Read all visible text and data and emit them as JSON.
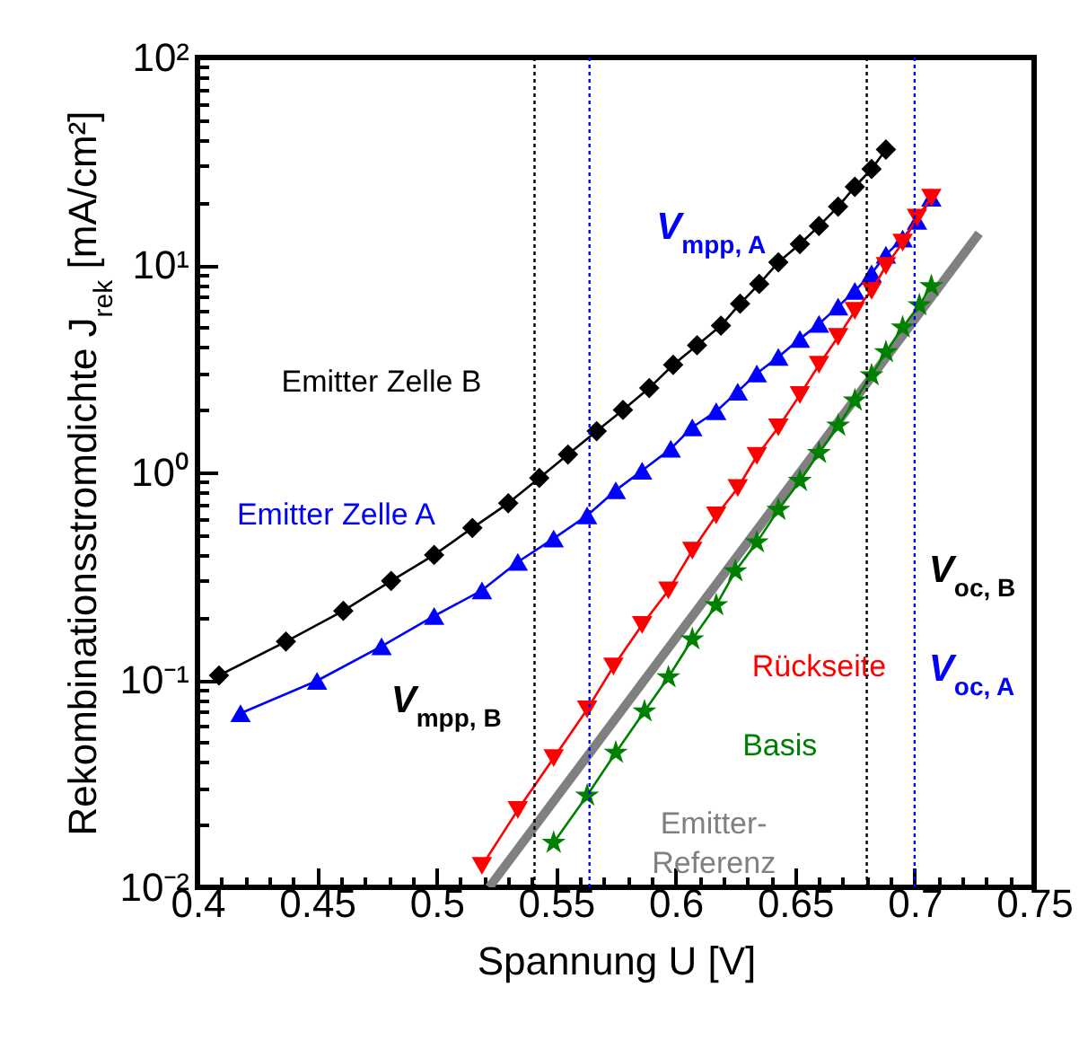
{
  "chart_data": {
    "type": "line",
    "xlabel": "Spannung U [V]",
    "ylabel": "Rekombinationsstromdichte J$_{rek}$ [mA/cm²]",
    "log": "y",
    "xlim": [
      0.4,
      0.75
    ],
    "xticks": [
      0.4,
      0.45,
      0.5,
      0.55,
      0.6,
      0.65,
      0.7,
      0.75
    ],
    "ylim": [
      0.01,
      100
    ],
    "yticks": [
      {
        "value": 0.01,
        "label": "10⁻²"
      },
      {
        "value": 0.1,
        "label": "10⁻¹"
      },
      {
        "value": 1,
        "label": "10⁰"
      },
      {
        "value": 10,
        "label": "10¹"
      },
      {
        "value": 100,
        "label": "10²"
      }
    ],
    "series": [
      {
        "name": "Emitter Zelle B",
        "color": "#000000",
        "marker": "diamond",
        "x": [
          0.409,
          0.437,
          0.461,
          0.481,
          0.499,
          0.515,
          0.53,
          0.543,
          0.555,
          0.567,
          0.578,
          0.589,
          0.599,
          0.609,
          0.619,
          0.627,
          0.635,
          0.643,
          0.652,
          0.66,
          0.668,
          0.675,
          0.682,
          0.688
        ],
        "values": [
          0.105,
          0.153,
          0.215,
          0.3,
          0.4,
          0.54,
          0.71,
          0.94,
          1.22,
          1.58,
          2.0,
          2.55,
          3.3,
          4.1,
          5.1,
          6.5,
          8.1,
          10.3,
          12.6,
          15.4,
          19.1,
          23.8,
          29,
          36
        ]
      },
      {
        "name": "Emitter Zelle A",
        "color": "#0000ff",
        "marker": "triangle",
        "x": [
          0.418,
          0.45,
          0.477,
          0.499,
          0.519,
          0.534,
          0.549,
          0.563,
          0.575,
          0.586,
          0.598,
          0.607,
          0.617,
          0.626,
          0.634,
          0.643,
          0.652,
          0.66,
          0.668,
          0.675,
          0.682,
          0.688,
          0.695,
          0.701,
          0.707
        ],
        "values": [
          0.069,
          0.099,
          0.145,
          0.203,
          0.27,
          0.37,
          0.48,
          0.62,
          0.82,
          1.02,
          1.3,
          1.65,
          1.97,
          2.45,
          3.0,
          3.6,
          4.4,
          5.2,
          6.3,
          7.5,
          9.1,
          11.2,
          13.4,
          16.3,
          21.1
        ]
      },
      {
        "name": "Rückseite",
        "color": "#ff0000",
        "marker": "triangle-down",
        "x": [
          0.519,
          0.534,
          0.549,
          0.563,
          0.574,
          0.586,
          0.597,
          0.607,
          0.617,
          0.626,
          0.634,
          0.643,
          0.652,
          0.66,
          0.668,
          0.675,
          0.682,
          0.688,
          0.695,
          0.701,
          0.707
        ],
        "values": [
          0.0127,
          0.0236,
          0.042,
          0.072,
          0.116,
          0.184,
          0.27,
          0.42,
          0.62,
          0.84,
          1.2,
          1.65,
          2.36,
          3.3,
          4.5,
          6.0,
          7.5,
          9.9,
          12.8,
          16.9,
          21.1
        ]
      },
      {
        "name": "Basis",
        "color": "#008000",
        "marker": "star",
        "x": [
          0.549,
          0.563,
          0.575,
          0.587,
          0.597,
          0.607,
          0.617,
          0.625,
          0.634,
          0.643,
          0.652,
          0.66,
          0.668,
          0.675,
          0.682,
          0.688,
          0.695,
          0.702,
          0.707
        ],
        "values": [
          0.0164,
          0.0277,
          0.0446,
          0.0705,
          0.103,
          0.157,
          0.229,
          0.334,
          0.46,
          0.66,
          0.91,
          1.24,
          1.68,
          2.22,
          2.94,
          3.8,
          5.0,
          6.4,
          7.9
        ]
      },
      {
        "name": "Emitter-Referenz",
        "color": "#808080",
        "marker": "none",
        "x": [
          0.522,
          0.727
        ],
        "values": [
          0.01,
          14.2
        ]
      }
    ],
    "ref_lines": [
      {
        "axis": "x",
        "value": 0.541,
        "label": "V$_{mpp, B}$",
        "color": "#000000",
        "line_style": "dotted"
      },
      {
        "axis": "x",
        "value": 0.564,
        "label": "V$_{mpp, A}$",
        "color": "#0000ff",
        "line_style": "dotted"
      },
      {
        "axis": "x",
        "value": 0.68,
        "label": "V$_{oc, B}$",
        "color": "#000000",
        "line_style": "dotted"
      },
      {
        "axis": "x",
        "value": 0.7,
        "label": "V$_{oc, A}$",
        "color": "#0000ff",
        "line_style": "dotted"
      }
    ]
  }
}
